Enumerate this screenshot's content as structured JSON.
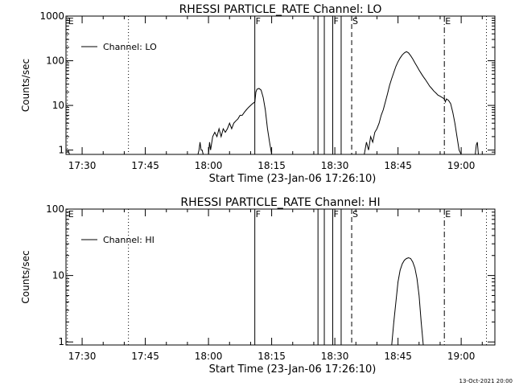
{
  "footer": {
    "timestamp": "13-Oct-2021 20:00"
  },
  "chart_data": [
    {
      "type": "line",
      "title": "RHESSI PARTICLE_RATE Channel: LO",
      "xlabel": "Start Time (23-Jan-06 17:26:10)",
      "ylabel": "Counts/sec",
      "y_scale": "log",
      "xlim": [
        "17:26:10",
        "19:08:00"
      ],
      "ylim": [
        0.8,
        1000
      ],
      "x_ticks": [
        "17:30",
        "17:45",
        "18:00",
        "18:15",
        "18:30",
        "18:45",
        "19:00"
      ],
      "y_ticks": [
        "1",
        "10",
        "100",
        "1000"
      ],
      "legend": {
        "position": "top-left",
        "label": "Channel: LO"
      },
      "markers": [
        {
          "time": "17:26:30",
          "label": "E",
          "style": "dotted"
        },
        {
          "time": "17:41:00",
          "label": "",
          "style": "dotted"
        },
        {
          "time": "18:11:00",
          "label": "F",
          "style": "solid"
        },
        {
          "time": "18:26:00",
          "label": "",
          "style": "solid"
        },
        {
          "time": "18:27:30",
          "label": "",
          "style": "solid"
        },
        {
          "time": "18:29:30",
          "label": "F",
          "style": "solid"
        },
        {
          "time": "18:31:30",
          "label": "",
          "style": "solid"
        },
        {
          "time": "18:34:00",
          "label": "S",
          "style": "dashed"
        },
        {
          "time": "18:56:00",
          "label": "E",
          "style": "dashdot"
        },
        {
          "time": "19:06:00",
          "label": "",
          "style": "dotted"
        }
      ],
      "series": [
        {
          "name": "Channel: LO",
          "segments": [
            [
              [
                "17:26:10",
                1
              ],
              [
                "17:26:40",
                1
              ],
              [
                "17:27:00",
                0.8
              ]
            ],
            [
              [
                "17:57:30",
                0.8
              ],
              [
                "17:57:45",
                1
              ],
              [
                "17:58:00",
                1.5
              ],
              [
                "17:58:15",
                1
              ],
              [
                "17:58:30",
                1
              ],
              [
                "17:58:45",
                0.8
              ]
            ],
            [
              [
                "18:00:00",
                0.8
              ],
              [
                "18:00:15",
                1.5
              ],
              [
                "18:00:30",
                1
              ],
              [
                "18:01:00",
                2
              ],
              [
                "18:01:30",
                2.5
              ],
              [
                "18:02:00",
                2
              ],
              [
                "18:02:30",
                3
              ],
              [
                "18:03:00",
                2
              ],
              [
                "18:03:30",
                3
              ],
              [
                "18:04:00",
                2.5
              ],
              [
                "18:04:30",
                3
              ],
              [
                "18:05:00",
                4
              ],
              [
                "18:05:30",
                3
              ],
              [
                "18:06:00",
                4
              ],
              [
                "18:06:30",
                4.5
              ],
              [
                "18:07:00",
                5
              ],
              [
                "18:07:30",
                6
              ],
              [
                "18:08:00",
                6
              ],
              [
                "18:08:30",
                7
              ],
              [
                "18:09:00",
                8
              ],
              [
                "18:09:30",
                9
              ],
              [
                "18:10:00",
                10
              ],
              [
                "18:10:30",
                11
              ],
              [
                "18:11:00",
                12
              ],
              [
                "18:11:15",
                20
              ],
              [
                "18:11:30",
                23
              ],
              [
                "18:12:00",
                24
              ],
              [
                "18:12:30",
                22
              ],
              [
                "18:13:00",
                15
              ],
              [
                "18:13:30",
                8
              ],
              [
                "18:14:00",
                3
              ],
              [
                "18:14:30",
                1.5
              ],
              [
                "18:15:00",
                0.8
              ]
            ],
            [
              [
                "18:37:00",
                0.8
              ],
              [
                "18:37:30",
                1.5
              ],
              [
                "18:38:00",
                1
              ],
              [
                "18:38:30",
                2
              ],
              [
                "18:39:00",
                1.5
              ],
              [
                "18:39:30",
                2.5
              ],
              [
                "18:40:00",
                3
              ],
              [
                "18:40:30",
                4
              ],
              [
                "18:41:00",
                6
              ],
              [
                "18:41:30",
                8
              ],
              [
                "18:42:00",
                12
              ],
              [
                "18:42:30",
                18
              ],
              [
                "18:43:00",
                28
              ],
              [
                "18:43:30",
                40
              ],
              [
                "18:44:00",
                55
              ],
              [
                "18:44:30",
                75
              ],
              [
                "18:45:00",
                95
              ],
              [
                "18:45:30",
                115
              ],
              [
                "18:46:00",
                135
              ],
              [
                "18:46:30",
                150
              ],
              [
                "18:47:00",
                160
              ],
              [
                "18:47:30",
                150
              ],
              [
                "18:48:00",
                130
              ],
              [
                "18:48:30",
                110
              ],
              [
                "18:49:00",
                90
              ],
              [
                "18:49:30",
                75
              ],
              [
                "18:50:00",
                62
              ],
              [
                "18:50:30",
                52
              ],
              [
                "18:51:00",
                44
              ],
              [
                "18:51:30",
                38
              ],
              [
                "18:52:00",
                32
              ],
              [
                "18:52:30",
                27
              ],
              [
                "18:53:00",
                24
              ],
              [
                "18:53:30",
                21
              ],
              [
                "18:54:00",
                19
              ],
              [
                "18:54:30",
                17
              ],
              [
                "18:55:00",
                16
              ],
              [
                "18:55:30",
                15
              ],
              [
                "18:56:00",
                14
              ],
              [
                "18:56:15",
                12
              ],
              [
                "18:56:30",
                14
              ],
              [
                "18:57:00",
                13
              ],
              [
                "18:57:30",
                11
              ],
              [
                "18:58:00",
                7
              ],
              [
                "18:58:30",
                4
              ],
              [
                "18:59:00",
                2
              ],
              [
                "18:59:30",
                1
              ],
              [
                "19:00:00",
                0.8
              ]
            ],
            [
              [
                "19:03:20",
                0.8
              ],
              [
                "19:03:35",
                1.3
              ],
              [
                "19:03:50",
                1.5
              ],
              [
                "19:04:05",
                0.8
              ]
            ]
          ]
        }
      ]
    },
    {
      "type": "line",
      "title": "RHESSI PARTICLE_RATE Channel: HI",
      "xlabel": "Start Time (23-Jan-06 17:26:10)",
      "ylabel": "Counts/sec",
      "y_scale": "log",
      "xlim": [
        "17:26:10",
        "19:08:00"
      ],
      "ylim": [
        0.9,
        100
      ],
      "x_ticks": [
        "17:30",
        "17:45",
        "18:00",
        "18:15",
        "18:30",
        "18:45",
        "19:00"
      ],
      "y_ticks": [
        "1",
        "10",
        "100"
      ],
      "legend": {
        "position": "top-left",
        "label": "Channel: HI"
      },
      "markers": [
        {
          "time": "17:26:30",
          "label": "E",
          "style": "dotted"
        },
        {
          "time": "17:41:00",
          "label": "",
          "style": "dotted"
        },
        {
          "time": "18:11:00",
          "label": "F",
          "style": "solid"
        },
        {
          "time": "18:26:00",
          "label": "",
          "style": "solid"
        },
        {
          "time": "18:27:30",
          "label": "",
          "style": "solid"
        },
        {
          "time": "18:29:30",
          "label": "F",
          "style": "solid"
        },
        {
          "time": "18:31:30",
          "label": "",
          "style": "solid"
        },
        {
          "time": "18:34:00",
          "label": "S",
          "style": "dashed"
        },
        {
          "time": "18:56:00",
          "label": "E",
          "style": "dashdot"
        },
        {
          "time": "19:06:00",
          "label": "",
          "style": "dotted"
        }
      ],
      "series": [
        {
          "name": "Channel: HI",
          "segments": [
            [
              [
                "18:43:30",
                0.9
              ],
              [
                "18:44:00",
                2
              ],
              [
                "18:44:30",
                4
              ],
              [
                "18:45:00",
                8
              ],
              [
                "18:45:30",
                12
              ],
              [
                "18:46:00",
                15
              ],
              [
                "18:46:30",
                17
              ],
              [
                "18:47:00",
                18
              ],
              [
                "18:47:30",
                18.5
              ],
              [
                "18:48:00",
                18
              ],
              [
                "18:48:30",
                16
              ],
              [
                "18:49:00",
                13
              ],
              [
                "18:49:30",
                9
              ],
              [
                "18:50:00",
                5
              ],
              [
                "18:50:30",
                2
              ],
              [
                "18:51:00",
                0.9
              ]
            ]
          ]
        }
      ]
    }
  ]
}
